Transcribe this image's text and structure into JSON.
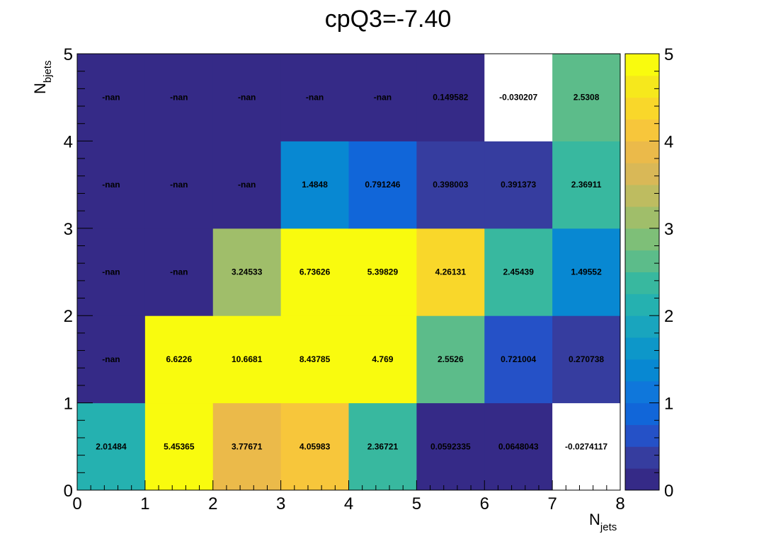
{
  "chart_data": {
    "type": "heatmap",
    "title": "cpQ3=-7.40",
    "xlabel": {
      "main": "N",
      "sub": "jets"
    },
    "ylabel": {
      "main": "N",
      "sub": "bjets"
    },
    "xlim": [
      0,
      8
    ],
    "ylim": [
      0,
      5
    ],
    "zlim": [
      0,
      5
    ],
    "x_ticks": [
      "0",
      "1",
      "2",
      "3",
      "4",
      "5",
      "6",
      "7",
      "8"
    ],
    "y_ticks": [
      "0",
      "1",
      "2",
      "3",
      "4",
      "5"
    ],
    "z_ticks": [
      "0",
      "1",
      "2",
      "3",
      "4",
      "5"
    ],
    "rows_from_y0": [
      [
        "2.01484",
        "5.45365",
        "3.77671",
        "4.05983",
        "2.36721",
        "0.0592335",
        "0.0648043",
        "-0.0274117"
      ],
      [
        "-nan",
        "6.6226",
        "10.6681",
        "8.43785",
        "4.769",
        "2.5526",
        "0.721004",
        "0.270738"
      ],
      [
        "-nan",
        "-nan",
        "3.24533",
        "6.73626",
        "5.39829",
        "4.26131",
        "2.45439",
        "1.49552"
      ],
      [
        "-nan",
        "-nan",
        "-nan",
        "1.4848",
        "0.791246",
        "0.398003",
        "0.391373",
        "2.36911"
      ],
      [
        "-nan",
        "-nan",
        "-nan",
        "-nan",
        "-nan",
        "0.149582",
        "-0.030207",
        "2.5308"
      ]
    ],
    "colormap": [
      "#352a87",
      "#363d9f",
      "#2551c7",
      "#1166d9",
      "#0f77db",
      "#0888d2",
      "#0d97c9",
      "#19a5be",
      "#25b1b0",
      "#38b89f",
      "#5cbc8a",
      "#7ebf78",
      "#a0be6a",
      "#bebc60",
      "#d9b857",
      "#ebba4a",
      "#f7c63b",
      "#f9d72a",
      "#f6e81c",
      "#f9fb0e"
    ],
    "below_range_color": "#ffffff"
  }
}
